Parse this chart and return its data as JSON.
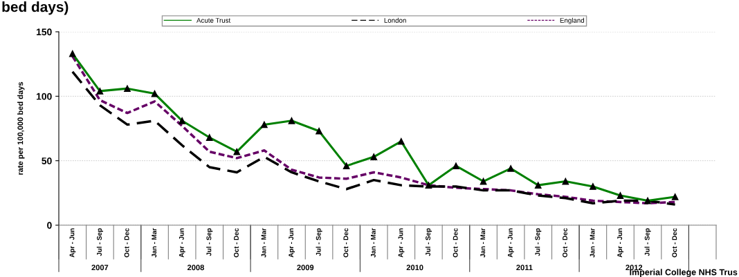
{
  "chart_data": {
    "type": "line",
    "title": "bed days)",
    "ylabel": "rate per 100,000 bed days",
    "categories": [
      "Apr - Jun",
      "Jul - Sep",
      "Oct - Dec",
      "Jan - Mar",
      "Apr - Jun",
      "Jul - Sep",
      "Oct - Dec",
      "Jan - Mar",
      "Apr - Jun",
      "Jul - Sep",
      "Oct - Dec",
      "Jan - Mar",
      "Apr - Jun",
      "Jul - Sep",
      "Oct - Dec",
      "Jan - Mar",
      "Apr - Jun",
      "Jul - Sep",
      "Oct - Dec",
      "Jan - Mar",
      "Apr - Jun",
      "Jul - Sep",
      "Oct - Dec",
      null
    ],
    "series": [
      {
        "name": "Acute Trust",
        "color": "#008000",
        "marker": "triangle",
        "line_style": "solid",
        "values": [
          133,
          104,
          106,
          102,
          81,
          68,
          57,
          78,
          81,
          73,
          46,
          53,
          65,
          31,
          46,
          34,
          44,
          31,
          34,
          30,
          23,
          19,
          22,
          null
        ]
      },
      {
        "name": "London",
        "color": "#000000",
        "marker": "none",
        "line_style": "dashed",
        "values": [
          119,
          93,
          78,
          81,
          62,
          45,
          41,
          53,
          41,
          34,
          28,
          35,
          31,
          30,
          30,
          27,
          27,
          23,
          21,
          17,
          19,
          19,
          16,
          null
        ]
      },
      {
        "name": "England",
        "color": "#660066",
        "marker": "none",
        "line_style": "dotted",
        "values": [
          131,
          97,
          87,
          96,
          77,
          57,
          52,
          58,
          43,
          37,
          36,
          41,
          37,
          31,
          29,
          28,
          27,
          24,
          22,
          19,
          18,
          17,
          18,
          null
        ]
      }
    ],
    "ylim": [
      0,
      150
    ],
    "yticks": [
      0,
      50,
      100,
      150
    ],
    "grid": "y",
    "legend": "top",
    "annotations": [
      "2007",
      "2008",
      "2009",
      "2010",
      "2011",
      "2012",
      "Imperial College NHS Trus"
    ]
  }
}
